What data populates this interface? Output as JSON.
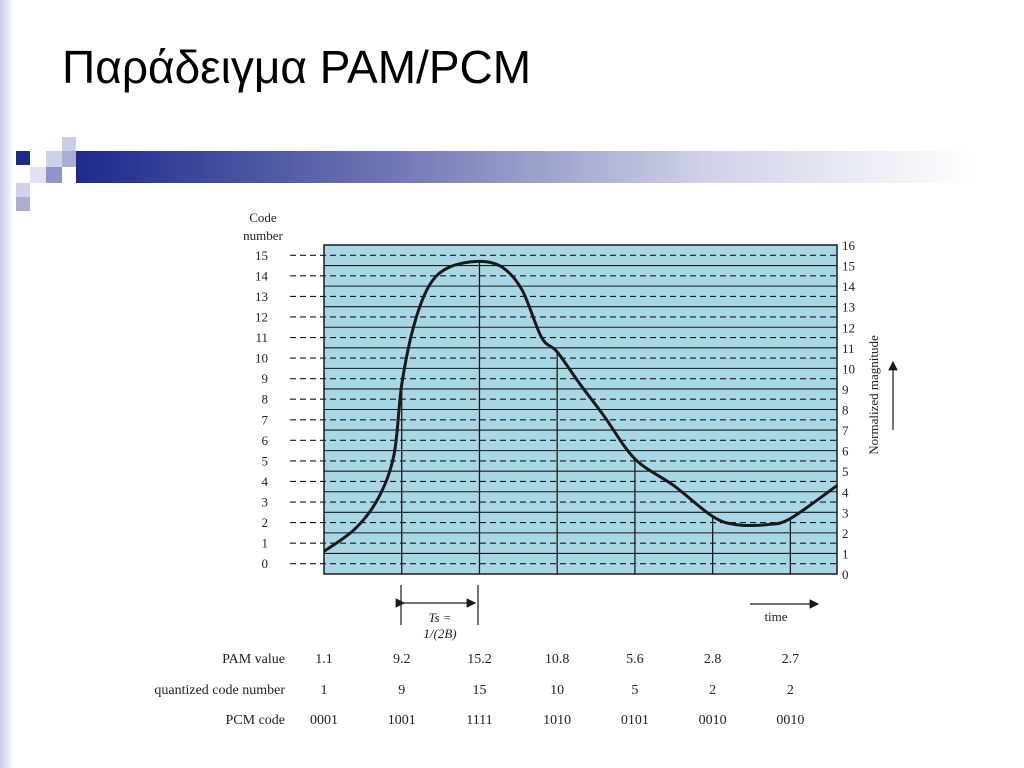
{
  "slide": {
    "title": "Παράδειγμα PAM/PCM",
    "accent_color": "#1c2a8c",
    "accent_light": "#8f95c9"
  },
  "chart_data": {
    "type": "line",
    "left_axis_label_line1": "Code",
    "left_axis_label_line2": "number",
    "right_axis_label": "Normalized magnitude",
    "left_ticks": [
      "0",
      "1",
      "2",
      "3",
      "4",
      "5",
      "6",
      "7",
      "8",
      "9",
      "10",
      "11",
      "12",
      "13",
      "14",
      "15"
    ],
    "right_ticks": [
      "0",
      "1",
      "2",
      "3",
      "4",
      "5",
      "6",
      "7",
      "8",
      "9",
      "10",
      "11",
      "12",
      "13",
      "14",
      "15",
      "16"
    ],
    "ylim": [
      0,
      16
    ],
    "xlabel": "time",
    "ts_label_line1": "Ts =",
    "ts_label_line2": "1/(2B)",
    "curve": [
      {
        "x": 0.0,
        "y": 1.1
      },
      {
        "x": 0.4,
        "y": 2.2
      },
      {
        "x": 0.7,
        "y": 3.7
      },
      {
        "x": 0.9,
        "y": 5.8
      },
      {
        "x": 1.0,
        "y": 9.2
      },
      {
        "x": 1.15,
        "y": 12.0
      },
      {
        "x": 1.35,
        "y": 14.0
      },
      {
        "x": 1.6,
        "y": 14.9
      },
      {
        "x": 2.0,
        "y": 15.2
      },
      {
        "x": 2.3,
        "y": 14.9
      },
      {
        "x": 2.55,
        "y": 13.8
      },
      {
        "x": 2.8,
        "y": 11.5
      },
      {
        "x": 3.0,
        "y": 10.8
      },
      {
        "x": 3.3,
        "y": 9.2
      },
      {
        "x": 3.6,
        "y": 7.7
      },
      {
        "x": 4.0,
        "y": 5.6
      },
      {
        "x": 4.5,
        "y": 4.3
      },
      {
        "x": 5.0,
        "y": 2.8
      },
      {
        "x": 5.3,
        "y": 2.4
      },
      {
        "x": 5.7,
        "y": 2.4
      },
      {
        "x": 6.0,
        "y": 2.7
      },
      {
        "x": 6.6,
        "y": 4.3
      }
    ],
    "samples": [
      {
        "x": 1,
        "pam": "9.2",
        "code": "9",
        "pcm": "1001",
        "value": 9.2
      },
      {
        "x": 2,
        "pam": "15.2",
        "code": "15",
        "pcm": "1111",
        "value": 15.2
      },
      {
        "x": 3,
        "pam": "10.8",
        "code": "10",
        "pcm": "1010",
        "value": 10.8
      },
      {
        "x": 4,
        "pam": "5.6",
        "code": "5",
        "pcm": "0101",
        "value": 5.6
      },
      {
        "x": 5,
        "pam": "2.8",
        "code": "2",
        "pcm": "0010",
        "value": 2.8
      },
      {
        "x": 6,
        "pam": "2.7",
        "code": "2",
        "pcm": "0010",
        "value": 2.7
      }
    ],
    "table": {
      "row_labels": [
        "PAM value",
        "quantized code number",
        "PCM code"
      ],
      "pam_values": [
        "1.1",
        "9.2",
        "15.2",
        "10.8",
        "5.6",
        "2.8",
        "2.7"
      ],
      "code_numbers": [
        "1",
        "9",
        "15",
        "10",
        "5",
        "2",
        "2"
      ],
      "pcm_codes": [
        "0001",
        "1001",
        "1111",
        "1010",
        "0101",
        "0010",
        "0010"
      ]
    },
    "colors": {
      "plot_fill": "#a8d7e6",
      "grid": "#1a1a1a",
      "curve": "#1a1a1a"
    }
  }
}
